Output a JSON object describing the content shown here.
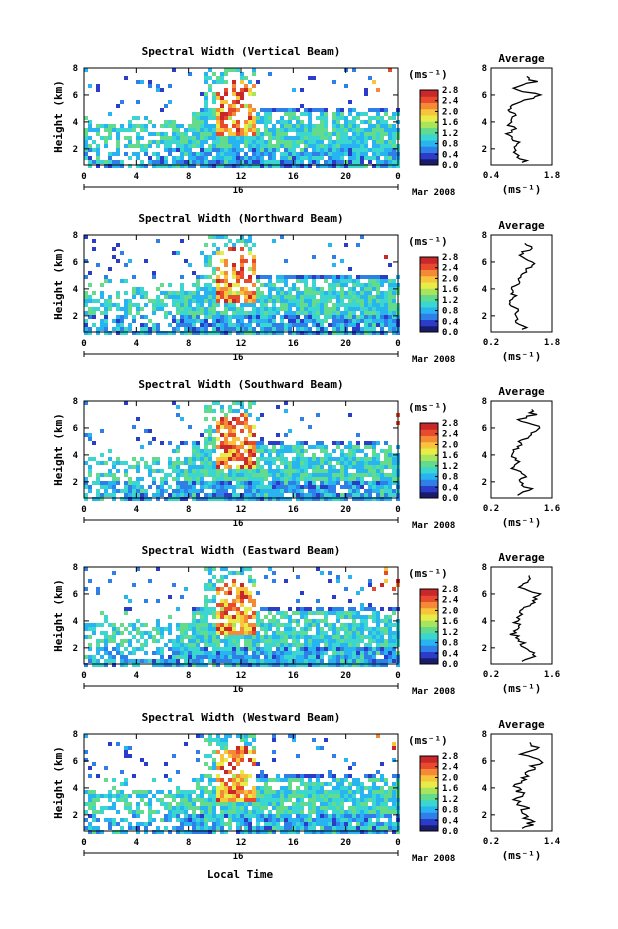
{
  "figure": {
    "date_label": "Mar 2008",
    "day_label": "16",
    "x_axis_title": "Local Time",
    "y_axis_title": "Height (km)",
    "colorbar_unit": "(ms⁻¹)",
    "average_title": "Average",
    "average_unit": "(ms⁻¹)"
  },
  "colormap": [
    "#1b1b6e",
    "#2a3cc8",
    "#2e7fe8",
    "#28b4f0",
    "#3cd6d0",
    "#62dc8c",
    "#a8e45c",
    "#e8ec48",
    "#f8c43c",
    "#f48a36",
    "#e84a2e",
    "#c8282a"
  ],
  "chart_data": [
    {
      "type": "heatmap",
      "title": "Spectral Width (Vertical Beam)",
      "xlabel": "Local Time",
      "ylabel": "Height (km)",
      "xlim": [
        0,
        24
      ],
      "ylim": [
        0.8,
        8
      ],
      "xticks": [
        "0",
        "4",
        "8",
        "12",
        "16",
        "20",
        "0"
      ],
      "yticks": [
        "2",
        "4",
        "6",
        "8"
      ],
      "colorbar": {
        "range": [
          0.0,
          2.8
        ],
        "ticks": [
          "2.8",
          "2.4",
          "2.0",
          "1.6",
          "1.2",
          "0.8",
          "0.4",
          "0.0"
        ]
      },
      "average": {
        "xlim": [
          0.4,
          1.8
        ],
        "xticks": [
          "0.4",
          "1.8"
        ],
        "yticks": [
          "2",
          "4",
          "6",
          "8"
        ]
      },
      "heights_km": [
        1.0,
        1.5,
        2.0,
        2.5,
        3.0,
        3.5,
        4.0,
        4.5,
        5.0,
        5.5,
        6.0,
        6.5,
        7.0,
        7.5
      ],
      "average_values": [
        1.2,
        1.0,
        0.9,
        1.0,
        0.8,
        0.9,
        0.8,
        0.9,
        0.8,
        1.1,
        1.5,
        0.9,
        1.4,
        1.2
      ]
    },
    {
      "type": "heatmap",
      "title": "Spectral Width (Northward Beam)",
      "xlabel": "Local Time",
      "ylabel": "Height (km)",
      "xlim": [
        0,
        24
      ],
      "ylim": [
        0.8,
        8
      ],
      "xticks": [
        "0",
        "4",
        "8",
        "12",
        "16",
        "20",
        "0"
      ],
      "yticks": [
        "2",
        "4",
        "6",
        "8"
      ],
      "colorbar": {
        "range": [
          0.0,
          2.8
        ],
        "ticks": [
          "2.8",
          "2.4",
          "2.0",
          "1.6",
          "1.2",
          "0.8",
          "0.4",
          "0.0"
        ]
      },
      "average": {
        "xlim": [
          0.2,
          1.8
        ],
        "xticks": [
          "0.2",
          "1.8"
        ],
        "yticks": [
          "2",
          "4",
          "6",
          "8"
        ]
      },
      "heights_km": [
        1.0,
        1.5,
        2.0,
        2.5,
        3.0,
        3.5,
        4.0,
        4.5,
        5.0,
        5.5,
        6.0,
        6.5,
        7.0,
        7.5
      ],
      "average_values": [
        1.1,
        0.9,
        0.8,
        0.9,
        0.7,
        0.8,
        0.8,
        0.9,
        0.9,
        1.2,
        1.3,
        0.9,
        1.3,
        1.1
      ]
    },
    {
      "type": "heatmap",
      "title": "Spectral Width (Southward Beam)",
      "xlabel": "Local Time",
      "ylabel": "Height (km)",
      "xlim": [
        0,
        24
      ],
      "ylim": [
        0.8,
        8
      ],
      "xticks": [
        "0",
        "4",
        "8",
        "12",
        "16",
        "20",
        "0"
      ],
      "yticks": [
        "2",
        "4",
        "6",
        "8"
      ],
      "colorbar": {
        "range": [
          0.0,
          2.8
        ],
        "ticks": [
          "2.8",
          "2.4",
          "2.0",
          "1.6",
          "1.2",
          "0.8",
          "0.4",
          "0.0"
        ]
      },
      "average": {
        "xlim": [
          0.2,
          1.6
        ],
        "xticks": [
          "0.2",
          "1.6"
        ],
        "yticks": [
          "2",
          "4",
          "6",
          "8"
        ]
      },
      "heights_km": [
        1.0,
        1.5,
        2.0,
        2.5,
        3.0,
        3.5,
        4.0,
        4.5,
        5.0,
        5.5,
        6.0,
        6.5,
        7.0,
        7.5
      ],
      "average_values": [
        0.9,
        1.1,
        0.8,
        1.0,
        0.7,
        0.8,
        0.7,
        0.8,
        0.9,
        1.1,
        1.4,
        0.8,
        1.2,
        1.0
      ]
    },
    {
      "type": "heatmap",
      "title": "Spectral Width (Eastward Beam)",
      "xlabel": "Local Time",
      "ylabel": "Height (km)",
      "xlim": [
        0,
        24
      ],
      "ylim": [
        0.8,
        8
      ],
      "xticks": [
        "0",
        "4",
        "8",
        "12",
        "16",
        "20",
        "0"
      ],
      "yticks": [
        "2",
        "4",
        "6",
        "8"
      ],
      "colorbar": {
        "range": [
          0.0,
          2.8
        ],
        "ticks": [
          "2.8",
          "2.4",
          "2.0",
          "1.6",
          "1.2",
          "0.8",
          "0.4",
          "0.0"
        ]
      },
      "average": {
        "xlim": [
          0.2,
          1.6
        ],
        "xticks": [
          "0.2",
          "1.6"
        ],
        "yticks": [
          "2",
          "4",
          "6",
          "8"
        ]
      },
      "heights_km": [
        1.0,
        1.5,
        2.0,
        2.5,
        3.0,
        3.5,
        4.0,
        4.5,
        5.0,
        5.5,
        6.0,
        6.5,
        7.0,
        7.5
      ],
      "average_values": [
        1.0,
        1.2,
        0.9,
        0.9,
        0.7,
        0.8,
        0.8,
        0.9,
        1.0,
        1.2,
        1.3,
        0.9,
        1.1,
        1.0
      ]
    },
    {
      "type": "heatmap",
      "title": "Spectral Width (Westward Beam)",
      "xlabel": "Local Time",
      "ylabel": "Height (km)",
      "xlim": [
        0,
        24
      ],
      "ylim": [
        0.8,
        8
      ],
      "xticks": [
        "0",
        "4",
        "8",
        "12",
        "16",
        "20",
        "0"
      ],
      "yticks": [
        "2",
        "4",
        "6",
        "8"
      ],
      "colorbar": {
        "range": [
          0.0,
          2.8
        ],
        "ticks": [
          "2.8",
          "2.4",
          "2.0",
          "1.6",
          "1.2",
          "0.8",
          "0.4",
          "0.0"
        ]
      },
      "average": {
        "xlim": [
          0.2,
          1.4
        ],
        "xticks": [
          "0.2",
          "1.4"
        ],
        "yticks": [
          "2",
          "4",
          "6",
          "8"
        ]
      },
      "heights_km": [
        1.0,
        1.5,
        2.0,
        2.5,
        3.0,
        3.5,
        4.0,
        4.5,
        5.0,
        5.5,
        6.0,
        6.5,
        7.0,
        7.5
      ],
      "average_values": [
        0.9,
        1.0,
        0.8,
        0.9,
        0.7,
        0.8,
        0.7,
        0.8,
        0.9,
        1.0,
        1.2,
        0.8,
        1.1,
        0.9
      ]
    }
  ]
}
